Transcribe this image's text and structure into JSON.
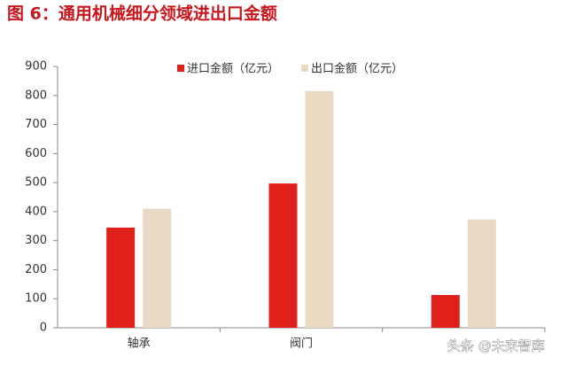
{
  "chart_data": {
    "type": "bar",
    "title": "图 6：通用机械细分领域进出口金额",
    "categories": [
      "轴承",
      "阀门",
      null
    ],
    "series": [
      {
        "name": "进口金额（亿元）",
        "color": "#e0201b",
        "values": [
          345,
          497,
          113
        ]
      },
      {
        "name": "出口金额（亿元）",
        "color": "#e8d9c2",
        "values": [
          410,
          815,
          373
        ]
      }
    ],
    "ylim": [
      0,
      900
    ],
    "yticks": [
      0,
      100,
      200,
      300,
      400,
      500,
      600,
      700,
      800,
      900
    ],
    "grid": false,
    "legend": "top",
    "watermark": "头条 @未来智库"
  }
}
